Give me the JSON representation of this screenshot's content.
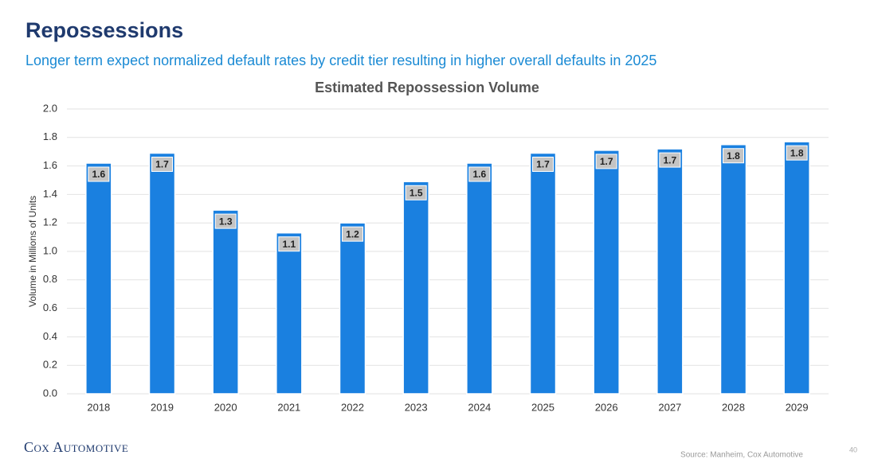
{
  "header": {
    "title": "Repossessions",
    "subtitle": "Longer term expect normalized default rates by credit tier resulting in higher overall defaults in 2025"
  },
  "chart_data": {
    "type": "bar",
    "title": "Estimated Repossession Volume",
    "y_label": "Volume in Millions of Units",
    "categories": [
      "2018",
      "2019",
      "2020",
      "2021",
      "2022",
      "2023",
      "2024",
      "2025",
      "2026",
      "2027",
      "2028",
      "2029"
    ],
    "values": [
      1.62,
      1.69,
      1.29,
      1.13,
      1.2,
      1.49,
      1.62,
      1.69,
      1.71,
      1.72,
      1.75,
      1.77
    ],
    "value_labels": [
      "1.6",
      "1.7",
      "1.3",
      "1.1",
      "1.2",
      "1.5",
      "1.6",
      "1.7",
      "1.7",
      "1.7",
      "1.8",
      "1.8"
    ],
    "color": "#1a80e0",
    "ylim": [
      0,
      2
    ],
    "yticks": [
      {
        "value": 0,
        "label": "0.0"
      },
      0.2,
      0.4,
      0.6,
      0.8,
      {
        "value": 1,
        "label": "1.0"
      },
      1.2,
      1.4,
      1.6,
      1.8,
      {
        "value": 2,
        "label": "2.0"
      }
    ],
    "grid": true
  },
  "footer": {
    "logo": "Cox Automotive",
    "source": "Source: Manheim, Cox Automotive",
    "page": "40"
  }
}
